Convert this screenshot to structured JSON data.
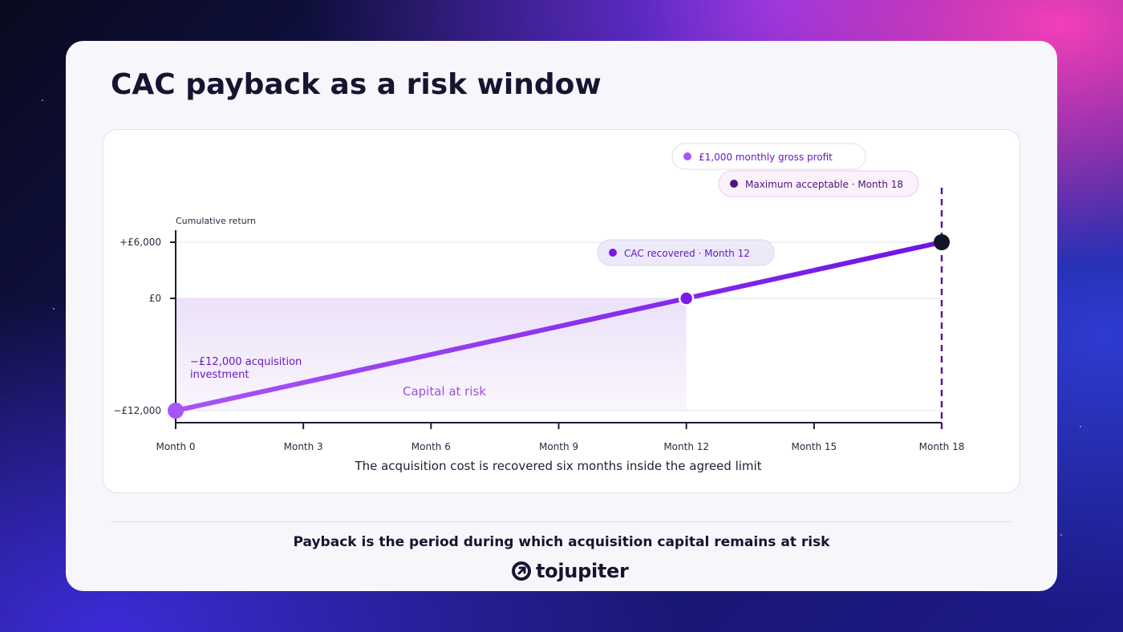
{
  "title": "CAC payback as a risk window",
  "footer": "Payback is the period during which acquisition capital remains at risk",
  "brand": {
    "name": "tojupiter",
    "icon": "tojupiter-logo-icon"
  },
  "colors": {
    "line_start": "#a855f7",
    "line_end": "#6d13e6",
    "shade": "#e9dcf8",
    "limit": "#5b1796",
    "end_point": "#141428",
    "text_dark": "#151531"
  },
  "chart_data": {
    "type": "line",
    "ylabel": "Cumulative return",
    "xlabel": "The acquisition cost is recovered six months inside the agreed limit",
    "x": [
      0,
      12,
      18
    ],
    "y": [
      -12000,
      0,
      6000
    ],
    "xlim": [
      0,
      18
    ],
    "ylim": [
      -13000,
      7000
    ],
    "x_ticks": [
      0,
      3,
      6,
      9,
      12,
      15,
      18
    ],
    "x_tick_labels": [
      "Month 0",
      "Month 3",
      "Month 6",
      "Month 9",
      "Month 12",
      "Month 15",
      "Month 18"
    ],
    "y_ticks": [
      6000,
      0,
      -12000
    ],
    "y_tick_labels": [
      "+£6,000",
      "£0",
      "−£12,000"
    ],
    "shaded_region": {
      "x": [
        0,
        12
      ],
      "y": [
        -12000,
        0
      ],
      "label": "Capital at risk"
    },
    "limit_line": {
      "x": 18
    },
    "annotations": {
      "start": "−£12,000 acquisition investment",
      "start_lines": [
        "−£12,000 acquisition",
        "investment"
      ],
      "recovered": "CAC recovered · Month 12",
      "gross_profit": "£1,000 monthly gross profit",
      "max_acceptable": "Maximum acceptable · Month 18"
    },
    "grid": true,
    "legend": "top-right"
  }
}
